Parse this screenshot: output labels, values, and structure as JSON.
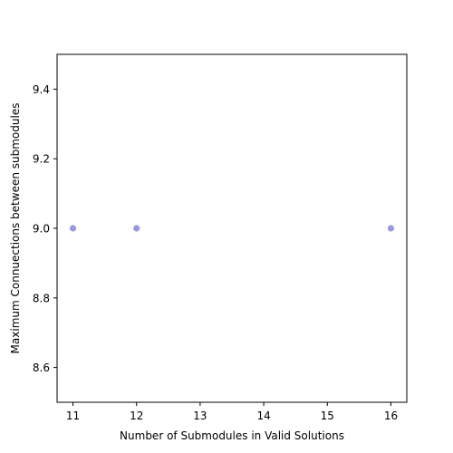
{
  "chart_data": {
    "type": "scatter",
    "title": "",
    "xlabel": "Number of Submodules in Valid Solutions",
    "ylabel": "Maximum Connuections between submodules",
    "xlim": [
      10.75,
      16.25
    ],
    "ylim": [
      8.5,
      9.5
    ],
    "xticks": [
      11,
      12,
      13,
      14,
      15,
      16
    ],
    "yticks": [
      8.6,
      8.8,
      9.0,
      9.2,
      9.4
    ],
    "xtick_labels": [
      "11",
      "12",
      "13",
      "14",
      "15",
      "16"
    ],
    "ytick_labels": [
      "8.6",
      "8.8",
      "9.0",
      "9.2",
      "9.4"
    ],
    "grid": false,
    "legend": "none",
    "points": [
      {
        "x": 11,
        "y": 9.0
      },
      {
        "x": 12,
        "y": 9.0
      },
      {
        "x": 16,
        "y": 9.0
      }
    ],
    "marker_color": "#9999dd"
  }
}
